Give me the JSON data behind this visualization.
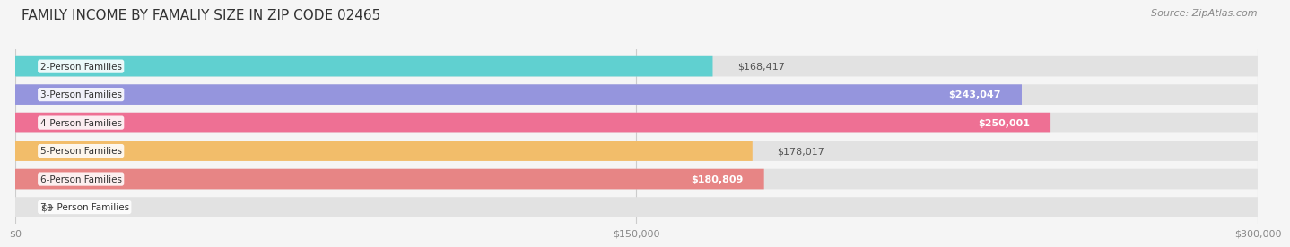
{
  "title": "FAMILY INCOME BY FAMALIY SIZE IN ZIP CODE 02465",
  "source": "Source: ZipAtlas.com",
  "categories": [
    "2-Person Families",
    "3-Person Families",
    "4-Person Families",
    "5-Person Families",
    "6-Person Families",
    "7+ Person Families"
  ],
  "values": [
    168417,
    243047,
    250001,
    178017,
    180809,
    0
  ],
  "bar_colors": [
    "#4ecece",
    "#8b8bdd",
    "#f0608a",
    "#f5b85a",
    "#e87878",
    "#90b8e0"
  ],
  "label_texts": [
    "$168,417",
    "$243,047",
    "$250,001",
    "$178,017",
    "$180,809",
    "$0"
  ],
  "label_inside": [
    false,
    true,
    true,
    false,
    true,
    false
  ],
  "xlim": [
    0,
    300000
  ],
  "xticks": [
    0,
    150000,
    300000
  ],
  "xtick_labels": [
    "$0",
    "$150,000",
    "$300,000"
  ],
  "background_color": "#f5f5f5",
  "bar_bg_color": "#e2e2e2",
  "title_fontsize": 11,
  "source_fontsize": 8,
  "label_fontsize": 8,
  "category_fontsize": 7.5
}
